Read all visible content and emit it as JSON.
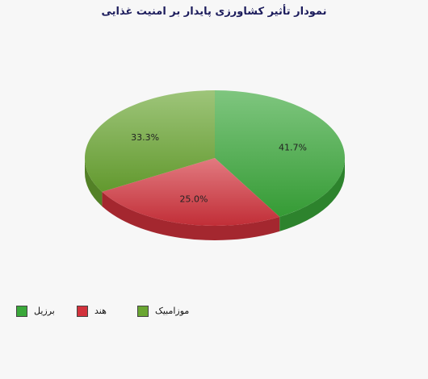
{
  "chart_data": {
    "type": "pie",
    "title": "نمودار تأثیر کشاورزی پایدار بر امنیت غذایی",
    "slices": [
      {
        "name": "برزیل",
        "value": 41.7,
        "label": "41.7%",
        "color": "#3aa83a"
      },
      {
        "name": "هند",
        "value": 25.0,
        "label": "25.0%",
        "color": "#d2323c"
      },
      {
        "name": "موزامبیک",
        "value": 33.3,
        "label": "33.3%",
        "color": "#6aa632"
      }
    ],
    "legend_position": "bottom-left"
  }
}
